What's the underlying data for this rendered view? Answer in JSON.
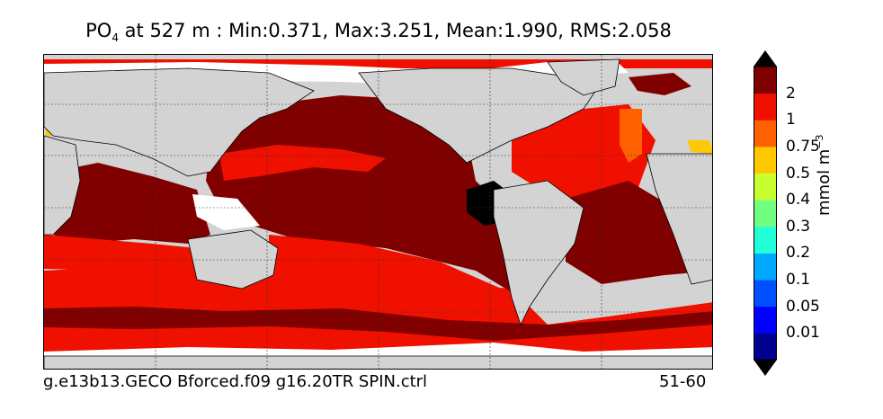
{
  "title": {
    "variable": "PO",
    "subscript": "4",
    "rest": " at 527 m : Min:0.371, Max:3.251, Mean:1.990, RMS:2.058"
  },
  "footer": {
    "left": "g.e13b13.GECO Bforced.f09 g16.20TR SPIN.ctrl",
    "right": "51-60"
  },
  "colorbar": {
    "unit_base": "mmol m",
    "unit_exp": "−3",
    "tick_labels": [
      "0.01",
      "0.05",
      "0.1",
      "0.2",
      "0.3",
      "0.4",
      "0.5",
      "0.75",
      "1",
      "2"
    ],
    "colors": [
      "#00008f",
      "#0000ff",
      "#0050ff",
      "#00a8ff",
      "#20ffd8",
      "#70ff80",
      "#c8ff30",
      "#ffc800",
      "#ff6000",
      "#f01000",
      "#800000"
    ],
    "under_color": "#000000",
    "over_color": "#000000"
  },
  "map": {
    "land_color": "#d3d3d3",
    "missing_color": "#ffffff",
    "high_color": "#800000",
    "mid_color": "#f01000",
    "orange_color": "#ff6000",
    "yellow_color": "#ffc800",
    "min_color": "#000000"
  }
}
